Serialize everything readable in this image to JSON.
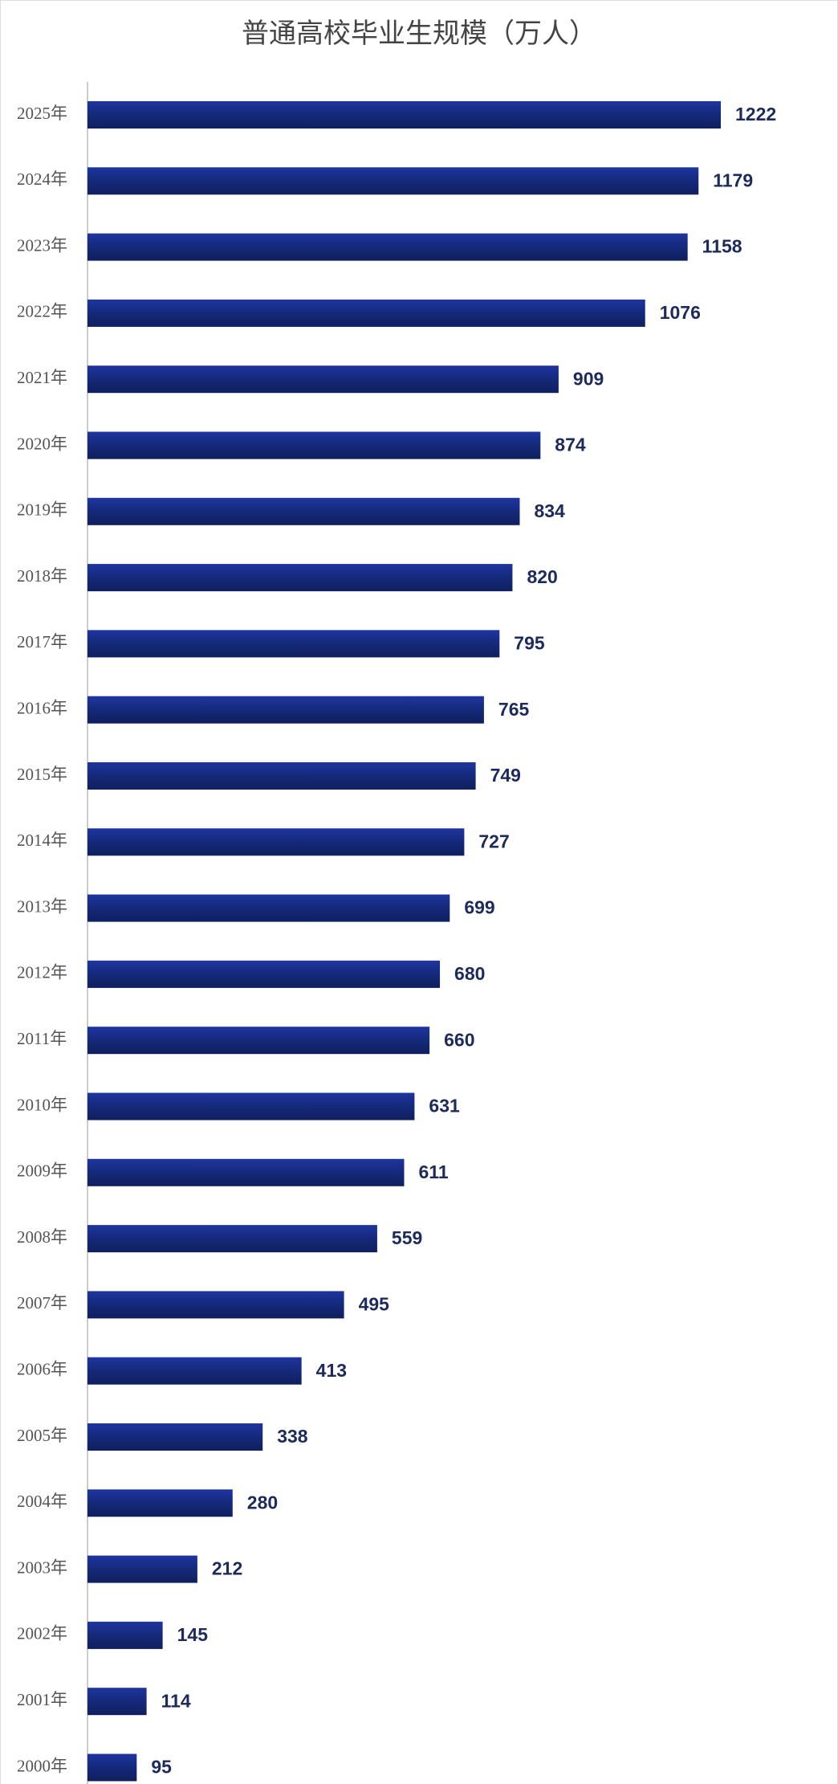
{
  "chart_data": {
    "type": "bar",
    "orientation": "horizontal",
    "title": "普通高校毕业生规模（万人）",
    "categories": [
      "2025年",
      "2024年",
      "2023年",
      "2022年",
      "2021年",
      "2020年",
      "2019年",
      "2018年",
      "2017年",
      "2016年",
      "2015年",
      "2014年",
      "2013年",
      "2012年",
      "2011年",
      "2010年",
      "2009年",
      "2008年",
      "2007年",
      "2006年",
      "2005年",
      "2004年",
      "2003年",
      "2002年",
      "2001年",
      "2000年"
    ],
    "values": [
      1222,
      1179,
      1158,
      1076,
      909,
      874,
      834,
      820,
      795,
      765,
      749,
      727,
      699,
      680,
      660,
      631,
      611,
      559,
      495,
      413,
      338,
      280,
      212,
      145,
      114,
      95
    ],
    "color": "#15297a"
  }
}
